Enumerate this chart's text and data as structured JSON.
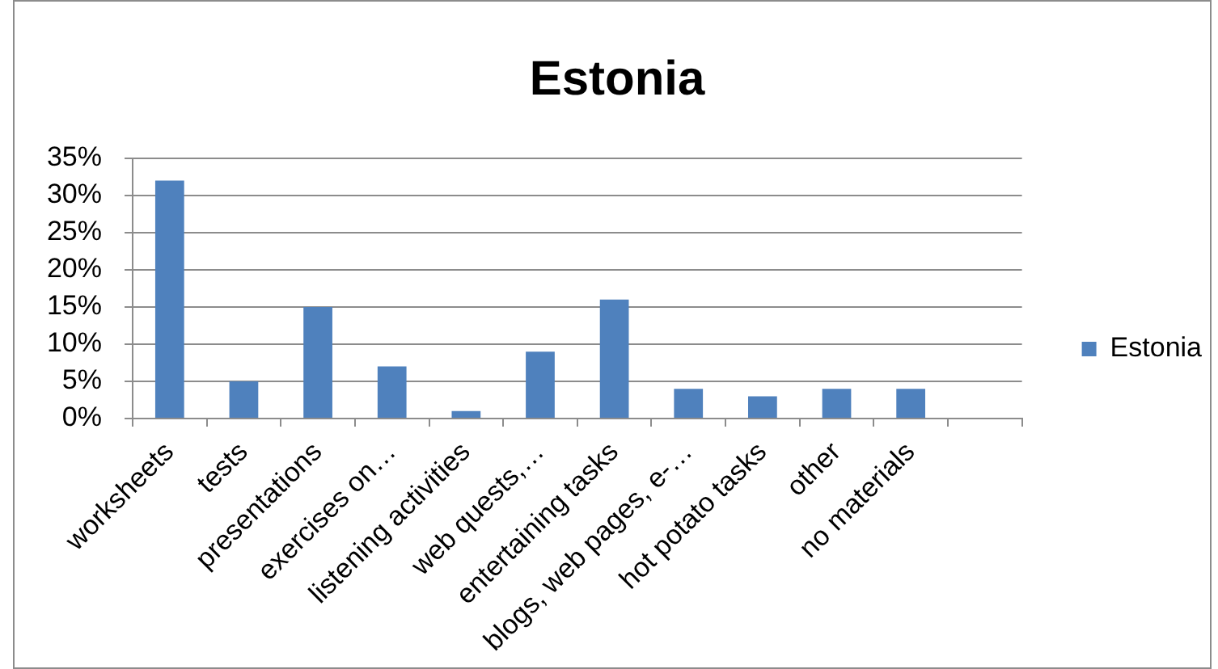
{
  "chart_data": {
    "type": "bar",
    "title": "Estonia",
    "categories": [
      "worksheets",
      "tests",
      "presentations",
      "exercises on…",
      "listening activities",
      "web quests,…",
      "entertaining tasks",
      "blogs, web pages, e-…",
      "hot potato tasks",
      "other",
      "no materials",
      null
    ],
    "series": [
      {
        "name": "Estonia",
        "color": "#4f81bd",
        "values": [
          32,
          5,
          15,
          7,
          1,
          9,
          16,
          4,
          3,
          4,
          4,
          null
        ]
      }
    ],
    "ylim": [
      0,
      35
    ],
    "yticks": [
      {
        "value": 0,
        "label": "0%"
      },
      {
        "value": 5,
        "label": "5%"
      },
      {
        "value": 10,
        "label": "10%"
      },
      {
        "value": 15,
        "label": "15%"
      },
      {
        "value": 20,
        "label": "20%"
      },
      {
        "value": 25,
        "label": "25%"
      },
      {
        "value": 30,
        "label": "30%"
      },
      {
        "value": 35,
        "label": "35%"
      }
    ],
    "grid": "y",
    "legend": "right"
  }
}
